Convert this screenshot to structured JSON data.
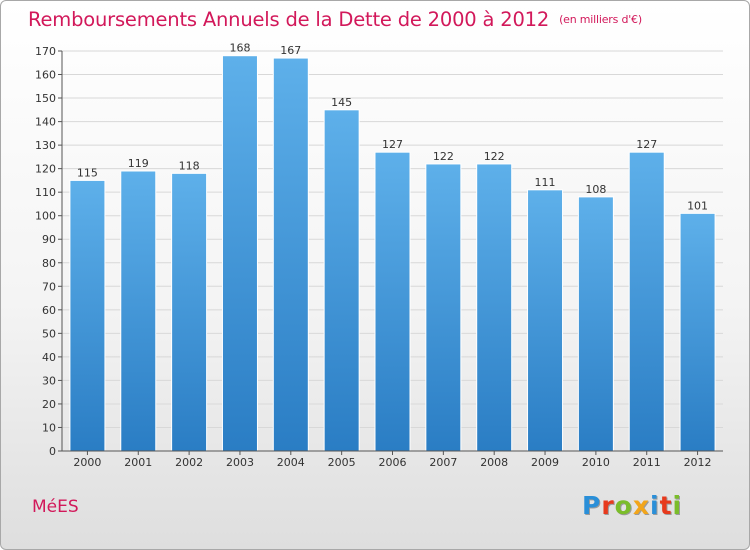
{
  "title": {
    "main": "Remboursements Annuels de la Dette de 2000 à 2012",
    "unit": "(en milliers d'€)"
  },
  "commune": "MéES",
  "logo": {
    "letters": [
      "P",
      "r",
      "o",
      "x",
      "i",
      "t",
      "i"
    ],
    "colors": [
      "#2a8fd8",
      "#e73a1d",
      "#7bbd2a",
      "#f2a51a",
      "#2a8fd8",
      "#e73a1d",
      "#7bbd2a"
    ]
  },
  "colors": {
    "bar_top": "#5eb0ea",
    "bar_bottom": "#2a7dc4",
    "title": "#d2185a",
    "grid": "#d8d8d8",
    "axis": "#555555"
  },
  "chart_data": {
    "type": "bar",
    "categories": [
      "2000",
      "2001",
      "2002",
      "2003",
      "2004",
      "2005",
      "2006",
      "2007",
      "2008",
      "2009",
      "2010",
      "2011",
      "2012"
    ],
    "values": [
      115,
      119,
      118,
      168,
      167,
      145,
      127,
      122,
      122,
      111,
      108,
      127,
      101
    ],
    "data_labels": [
      "115",
      "119",
      "118",
      "168",
      "167",
      "145",
      "127",
      "122",
      "122",
      "111",
      "108",
      "127",
      "101"
    ],
    "ylim": [
      0,
      170
    ],
    "yticks": [
      0,
      10,
      20,
      30,
      40,
      50,
      60,
      70,
      80,
      90,
      100,
      110,
      120,
      130,
      140,
      150,
      160,
      170
    ],
    "title": "Remboursements Annuels de la Dette de 2000 à 2012",
    "xlabel": "",
    "ylabel": "",
    "grid": true,
    "legend": "none"
  }
}
